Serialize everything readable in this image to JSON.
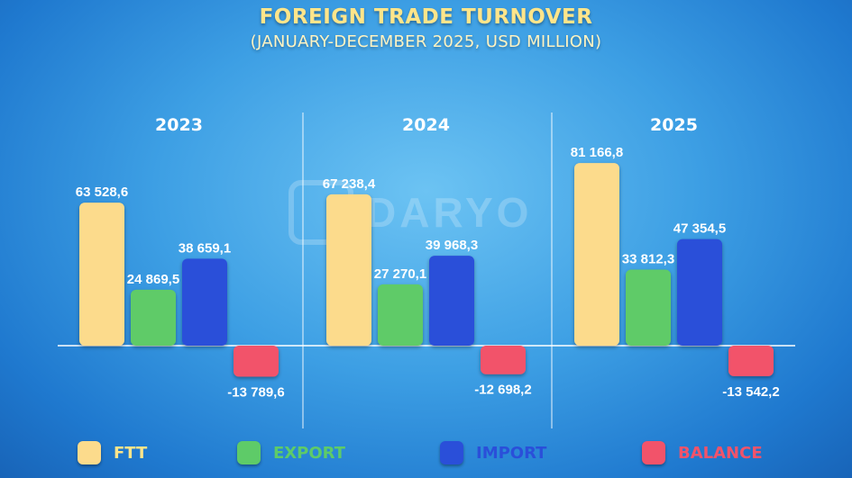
{
  "chart_data": {
    "type": "bar",
    "title": "FOREIGN TRADE TURNOVER",
    "subtitle": "(JANUARY-DECEMBER 2025, USD MILLION)",
    "categories": [
      "2023",
      "2024",
      "2025"
    ],
    "series": [
      {
        "name": "FTT",
        "color": "#fcdb8c",
        "values": [
          63528.6,
          67238.4,
          81166.8
        ],
        "labels": [
          "63 528,6",
          "67 238,4",
          "81 166,8"
        ]
      },
      {
        "name": "EXPORT",
        "color": "#5ecb68",
        "values": [
          24869.5,
          27270.1,
          33812.3
        ],
        "labels": [
          "24 869,5",
          "27 270,1",
          "33 812,3"
        ]
      },
      {
        "name": "IMPORT",
        "color": "#2a4fd9",
        "values": [
          38659.1,
          39968.3,
          47354.5
        ],
        "labels": [
          "38 659,1",
          "39 968,3",
          "47 354,5"
        ]
      },
      {
        "name": "BALANCE",
        "color": "#f2536a",
        "values": [
          -13789.6,
          -12698.2,
          -13542.2
        ],
        "labels": [
          "-13 789,6",
          "-12 698,2",
          "-13 542,2"
        ]
      }
    ],
    "legend_position": "bottom",
    "grid": false
  },
  "legend_text_colors": {
    "FTT": "#ffe58a",
    "EXPORT": "#5ecb68",
    "IMPORT": "#2a4fd9",
    "BALANCE": "#f2536a"
  },
  "watermark": {
    "text": "DARYO"
  }
}
